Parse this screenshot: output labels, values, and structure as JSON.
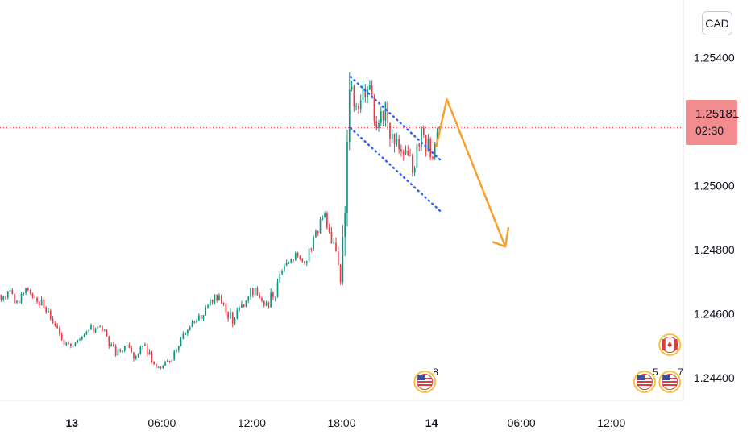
{
  "header": {
    "currency": "CAD"
  },
  "price_label": {
    "price": "1.25181",
    "countdown": "02:30"
  },
  "colors": {
    "up": "#089981",
    "down": "#f23645",
    "arrow": "#f7a030",
    "trendline": "#2962ff",
    "price_line": "#f23645"
  },
  "chart_data": {
    "type": "candlestick",
    "y_ticks": [
      "1.24400",
      "1.24600",
      "1.24800",
      "1.25000",
      "1.25400"
    ],
    "y_tick_values": [
      1.244,
      1.246,
      1.248,
      1.25,
      1.254
    ],
    "ylim": [
      1.2433,
      1.2558
    ],
    "x_ticks": [
      {
        "label": "13",
        "bold": true,
        "t": 8
      },
      {
        "label": "06:00",
        "bold": false,
        "t": 18
      },
      {
        "label": "12:00",
        "bold": false,
        "t": 28
      },
      {
        "label": "18:00",
        "bold": false,
        "t": 38
      },
      {
        "label": "14",
        "bold": true,
        "t": 48
      },
      {
        "label": "06:00",
        "bold": false,
        "t": 58
      },
      {
        "label": "12:00",
        "bold": false,
        "t": 68
      }
    ],
    "xlim": [
      0,
      76
    ],
    "current_price": 1.25181,
    "candles": [
      [
        1.2466,
        1.2469,
        1.2462,
        1.2467
      ],
      [
        1.2467,
        1.2469,
        1.2463,
        1.2464
      ],
      [
        1.2464,
        1.247,
        1.2463,
        1.2468
      ],
      [
        1.2468,
        1.247,
        1.2464,
        1.2465
      ],
      [
        1.2465,
        1.2468,
        1.246,
        1.2462
      ],
      [
        1.2462,
        1.2464,
        1.2455,
        1.2457
      ],
      [
        1.2457,
        1.2459,
        1.245,
        1.2452
      ],
      [
        1.2452,
        1.2455,
        1.2448,
        1.245
      ],
      [
        1.245,
        1.2454,
        1.2449,
        1.2452
      ],
      [
        1.2452,
        1.2456,
        1.2451,
        1.2455
      ],
      [
        1.2455,
        1.2458,
        1.2453,
        1.2456
      ],
      [
        1.2456,
        1.2457,
        1.2452,
        1.2453
      ],
      [
        1.2453,
        1.2454,
        1.2445,
        1.2447
      ],
      [
        1.2447,
        1.2451,
        1.2446,
        1.245
      ],
      [
        1.245,
        1.2452,
        1.2444,
        1.2446
      ],
      [
        1.2446,
        1.2452,
        1.2445,
        1.245
      ],
      [
        1.245,
        1.2451,
        1.2443,
        1.2445
      ],
      [
        1.2445,
        1.2447,
        1.2442,
        1.2443
      ],
      [
        1.2443,
        1.2446,
        1.2442,
        1.2445
      ],
      [
        1.2445,
        1.2451,
        1.2444,
        1.245
      ],
      [
        1.245,
        1.2456,
        1.2449,
        1.2455
      ],
      [
        1.2455,
        1.246,
        1.2454,
        1.2458
      ],
      [
        1.2458,
        1.2464,
        1.2457,
        1.2462
      ],
      [
        1.2462,
        1.2468,
        1.2461,
        1.2466
      ],
      [
        1.2466,
        1.2467,
        1.2461,
        1.2463
      ],
      [
        1.2463,
        1.2466,
        1.2455,
        1.2457
      ],
      [
        1.2457,
        1.2465,
        1.2456,
        1.2463
      ],
      [
        1.2463,
        1.247,
        1.2462,
        1.2468
      ],
      [
        1.2468,
        1.2471,
        1.2463,
        1.2465
      ],
      [
        1.2465,
        1.2466,
        1.246,
        1.2462
      ],
      [
        1.2462,
        1.2472,
        1.2461,
        1.247
      ],
      [
        1.247,
        1.2478,
        1.2469,
        1.2476
      ],
      [
        1.2476,
        1.2481,
        1.2475,
        1.2479
      ],
      [
        1.2479,
        1.2481,
        1.2474,
        1.2476
      ],
      [
        1.2476,
        1.2486,
        1.2475,
        1.2484
      ],
      [
        1.2484,
        1.2492,
        1.2483,
        1.249
      ],
      [
        1.249,
        1.2492,
        1.2478,
        1.2482
      ],
      [
        1.2482,
        1.2484,
        1.2469,
        1.247
      ],
      [
        1.247,
        1.2536,
        1.2469,
        1.253
      ],
      [
        1.253,
        1.2539,
        1.252,
        1.2524
      ],
      [
        1.2524,
        1.2537,
        1.2512,
        1.253
      ],
      [
        1.253,
        1.2533,
        1.2513,
        1.2518
      ],
      [
        1.2518,
        1.2534,
        1.2516,
        1.2526
      ],
      [
        1.2526,
        1.2532,
        1.2509,
        1.2513
      ],
      [
        1.2513,
        1.2526,
        1.2502,
        1.251
      ],
      [
        1.251,
        1.2516,
        1.2499,
        1.2504
      ],
      [
        1.2504,
        1.252,
        1.2503,
        1.2518
      ],
      [
        1.2518,
        1.2521,
        1.2507,
        1.2509
      ],
      [
        1.2509,
        1.2523,
        1.2508,
        1.2518
      ]
    ],
    "annotations": {
      "flag_channel": {
        "upper": [
          [
            39,
            1.2534
          ],
          [
            49,
            1.2508
          ]
        ],
        "lower": [
          [
            39,
            1.2518
          ],
          [
            49,
            1.2492
          ]
        ]
      },
      "forecast_arrow": [
        [
          48.5,
          1.2512
        ],
        [
          49.7,
          1.2527
        ],
        [
          56.2,
          1.2481
        ]
      ]
    },
    "events": [
      {
        "country": "US",
        "count": "8",
        "t": 52.2
      },
      {
        "country": "US",
        "count": "5",
        "t": 79.2
      },
      {
        "country": "US",
        "count": "7",
        "t": 82.3
      },
      {
        "country": "CA",
        "count": "",
        "t": 82.3
      }
    ]
  }
}
